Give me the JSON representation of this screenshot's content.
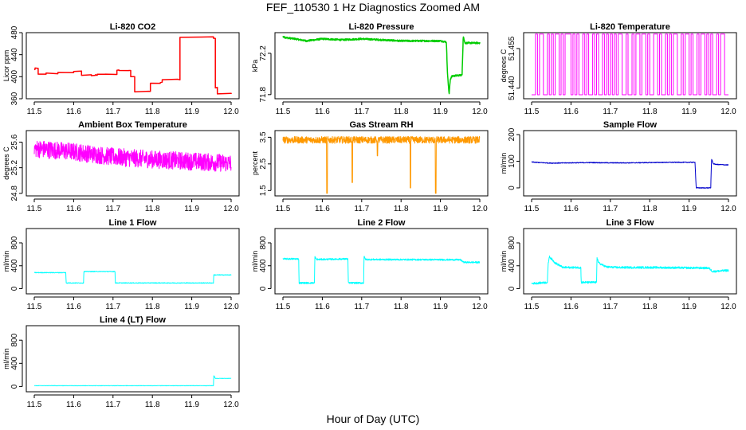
{
  "figure": {
    "title": "FEF_110530  1 Hz Diagnostics Zoomed AM",
    "xlabel": "Hour of Day (UTC)"
  },
  "chart_data": [
    {
      "id": "p1",
      "type": "line",
      "title": "Li-820 CO2",
      "ylabel": "Licor ppm",
      "color": "#ff0000",
      "xlim": [
        11.5,
        12.0
      ],
      "ylim": [
        360,
        480
      ],
      "xticks": [
        "11.5",
        "11.6",
        "11.7",
        "11.8",
        "11.9",
        "12.0"
      ],
      "yticks": [
        "360",
        "400",
        "440",
        "480"
      ],
      "series": [
        {
          "name": "CO2",
          "style": "step",
          "x": [
            11.5,
            11.502,
            11.51,
            11.53,
            11.56,
            11.6,
            11.62,
            11.645,
            11.655,
            11.66,
            11.68,
            11.71,
            11.715,
            11.74,
            11.745,
            11.755,
            11.79,
            11.795,
            11.82,
            11.825,
            11.865,
            11.87,
            11.955,
            11.96,
            11.965,
            12.0
          ],
          "y": [
            413,
            416,
            405,
            406,
            408,
            410,
            403,
            402,
            403,
            405,
            404,
            412,
            411,
            412,
            400,
            373,
            373,
            388,
            390,
            395,
            395,
            472,
            470,
            380,
            369,
            369
          ]
        }
      ]
    },
    {
      "id": "p2",
      "type": "line",
      "title": "Li-820 Pressure",
      "ylabel": "kPa",
      "color": "#00cc00",
      "xlim": [
        11.5,
        12.0
      ],
      "ylim": [
        71.76,
        72.4
      ],
      "xticks": [
        "11.5",
        "11.6",
        "11.7",
        "11.8",
        "11.9",
        "12.0"
      ],
      "yticks": [
        "71.8",
        "72.2"
      ],
      "noise": 0.008,
      "series": [
        {
          "name": "Pressure",
          "x": [
            11.5,
            11.51,
            11.53,
            11.56,
            11.6,
            11.65,
            11.7,
            11.75,
            11.8,
            11.85,
            11.9,
            11.915,
            11.918,
            11.922,
            11.925,
            11.93,
            11.955,
            11.958,
            11.962,
            11.97,
            12.0
          ],
          "y": [
            72.36,
            72.35,
            72.34,
            72.32,
            72.34,
            72.33,
            72.34,
            72.33,
            72.32,
            72.32,
            72.32,
            72.31,
            72.0,
            71.8,
            71.95,
            71.98,
            71.99,
            72.37,
            72.3,
            72.3,
            72.3
          ]
        }
      ]
    },
    {
      "id": "p3",
      "type": "line",
      "title": "Li-820 Temperature",
      "ylabel": "degrees C",
      "color": "#ff00ff",
      "xlim": [
        11.5,
        12.0
      ],
      "ylim": [
        51.436,
        51.461
      ],
      "xticks": [
        "11.5",
        "11.6",
        "11.7",
        "11.8",
        "11.9",
        "12.0"
      ],
      "yticks": [
        "51.440",
        "51.455"
      ],
      "levels": [
        51.4375,
        51.4605
      ],
      "series": [
        {
          "name": "Temperature",
          "style": "toggle",
          "switch_x": [
            11.51,
            11.515,
            11.52,
            11.53,
            11.54,
            11.545,
            11.55,
            11.555,
            11.56,
            11.57,
            11.575,
            11.58,
            11.585,
            11.6,
            11.605,
            11.61,
            11.615,
            11.62,
            11.63,
            11.635,
            11.64,
            11.645,
            11.655,
            11.66,
            11.665,
            11.67,
            11.68,
            11.685,
            11.69,
            11.695,
            11.7,
            11.705,
            11.71,
            11.715,
            11.72,
            11.73,
            11.74,
            11.745,
            11.755,
            11.76,
            11.765,
            11.775,
            11.78,
            11.79,
            11.795,
            11.8,
            11.81,
            11.82,
            11.825,
            11.83,
            11.84,
            11.845,
            11.85,
            11.855,
            11.86,
            11.87,
            11.88,
            11.885,
            11.89,
            11.9,
            11.905,
            11.91,
            11.92,
            11.925,
            11.93,
            11.94,
            11.945,
            11.95,
            11.955,
            11.96,
            11.97,
            11.975,
            11.98,
            11.99
          ]
        }
      ]
    },
    {
      "id": "p4",
      "type": "line",
      "title": "Ambient Box Temperature",
      "ylabel": "degrees C",
      "color": "#ff00ff",
      "xlim": [
        11.5,
        12.0
      ],
      "ylim": [
        24.76,
        25.78
      ],
      "xticks": [
        "11.5",
        "11.6",
        "11.7",
        "11.8",
        "11.9",
        "12.0"
      ],
      "yticks": [
        "24.8",
        "25.2",
        "25.6"
      ],
      "noise": 0.14,
      "series": [
        {
          "name": "Box temperature",
          "x": [
            11.5,
            11.6,
            11.7,
            11.8,
            11.9,
            12.0
          ],
          "y": [
            25.5,
            25.45,
            25.37,
            25.33,
            25.3,
            25.27
          ]
        }
      ]
    },
    {
      "id": "p5",
      "type": "line",
      "title": "Gas Stream RH",
      "ylabel": "percent",
      "color": "#ff9900",
      "xlim": [
        11.5,
        12.0
      ],
      "ylim": [
        1.3,
        3.75
      ],
      "xticks": [
        "11.5",
        "11.6",
        "11.7",
        "11.8",
        "11.9",
        "12.0"
      ],
      "yticks": [
        "1.5",
        "2.5",
        "3.5"
      ],
      "noise": 0.13,
      "series": [
        {
          "name": "RH",
          "x": [
            11.5,
            12.0
          ],
          "y": [
            3.4,
            3.4
          ],
          "dips": [
            {
              "x": 11.612,
              "y": 1.4
            },
            {
              "x": 11.676,
              "y": 1.8
            },
            {
              "x": 11.74,
              "y": 2.8
            },
            {
              "x": 11.824,
              "y": 1.6
            },
            {
              "x": 11.888,
              "y": 1.4
            }
          ]
        }
      ]
    },
    {
      "id": "p6",
      "type": "line",
      "title": "Sample Flow",
      "ylabel": "ml/min",
      "color": "#0000cc",
      "xlim": [
        11.5,
        12.0
      ],
      "ylim": [
        -30,
        215
      ],
      "xticks": [
        "11.5",
        "11.6",
        "11.7",
        "11.8",
        "11.9",
        "12.0"
      ],
      "yticks": [
        "0",
        "100",
        "200"
      ],
      "noise": 1.5,
      "series": [
        {
          "name": "Sample flow",
          "x": [
            11.5,
            11.52,
            11.55,
            11.6,
            11.65,
            11.7,
            11.75,
            11.8,
            11.85,
            11.9,
            11.915,
            11.918,
            11.955,
            11.957,
            11.962,
            11.97,
            12.0
          ],
          "y": [
            97,
            95,
            93,
            94,
            95,
            94,
            94,
            95,
            96,
            96,
            96,
            0,
            0,
            108,
            90,
            88,
            86
          ]
        }
      ]
    },
    {
      "id": "p7",
      "type": "line",
      "title": "Line 1 Flow",
      "ylabel": "ml/min",
      "color": "#00ffff",
      "xlim": [
        11.5,
        12.0
      ],
      "ylim": [
        -90,
        1050
      ],
      "xticks": [
        "11.5",
        "11.6",
        "11.7",
        "11.8",
        "11.9",
        "12.0"
      ],
      "yticks": [
        "0",
        "400",
        "800"
      ],
      "noise": 6,
      "series": [
        {
          "name": "Line 1",
          "x": [
            11.5,
            11.58,
            11.581,
            11.625,
            11.626,
            11.705,
            11.706,
            11.955,
            11.956,
            12.0
          ],
          "y": [
            280,
            280,
            100,
            100,
            300,
            300,
            100,
            100,
            240,
            240
          ]
        }
      ]
    },
    {
      "id": "p8",
      "type": "line",
      "title": "Line 2 Flow",
      "ylabel": "ml/min",
      "color": "#00ffff",
      "xlim": [
        11.5,
        12.0
      ],
      "ylim": [
        -90,
        1050
      ],
      "xticks": [
        "11.5",
        "11.6",
        "11.7",
        "11.8",
        "11.9",
        "12.0"
      ],
      "yticks": [
        "0",
        "400",
        "800"
      ],
      "noise": 14,
      "series": [
        {
          "name": "Line 2",
          "x": [
            11.5,
            11.54,
            11.541,
            11.58,
            11.581,
            11.585,
            11.665,
            11.666,
            11.705,
            11.706,
            11.71,
            11.95,
            11.96,
            12.0
          ],
          "y": [
            520,
            520,
            100,
            100,
            560,
            510,
            520,
            100,
            100,
            560,
            510,
            505,
            460,
            460
          ]
        }
      ]
    },
    {
      "id": "p9",
      "type": "line",
      "title": "Line 3 Flow",
      "ylabel": "ml/min",
      "color": "#00ffff",
      "xlim": [
        11.5,
        12.0
      ],
      "ylim": [
        -90,
        1050
      ],
      "xticks": [
        "11.5",
        "11.6",
        "11.7",
        "11.8",
        "11.9",
        "12.0"
      ],
      "yticks": [
        "0",
        "400",
        "800"
      ],
      "noise": 18,
      "series": [
        {
          "name": "Line 3",
          "x": [
            11.5,
            11.54,
            11.542,
            11.545,
            11.56,
            11.58,
            11.625,
            11.626,
            11.665,
            11.666,
            11.67,
            11.69,
            11.72,
            11.8,
            11.95,
            11.96,
            12.0
          ],
          "y": [
            90,
            110,
            430,
            560,
            450,
            370,
            370,
            110,
            110,
            560,
            450,
            380,
            370,
            370,
            360,
            300,
            320
          ]
        }
      ]
    },
    {
      "id": "p10",
      "type": "line",
      "title": "Line 4 (LT) Flow",
      "ylabel": "ml/min",
      "color": "#00ffff",
      "xlim": [
        11.5,
        12.0
      ],
      "ylim": [
        -90,
        1050
      ],
      "xticks": [
        "11.5",
        "11.6",
        "11.7",
        "11.8",
        "11.9",
        "12.0"
      ],
      "yticks": [
        "0",
        "400",
        "800"
      ],
      "noise": 3,
      "series": [
        {
          "name": "Line 4",
          "x": [
            11.5,
            11.955,
            11.956,
            11.96,
            12.0
          ],
          "y": [
            15,
            15,
            190,
            140,
            140
          ]
        }
      ]
    }
  ]
}
